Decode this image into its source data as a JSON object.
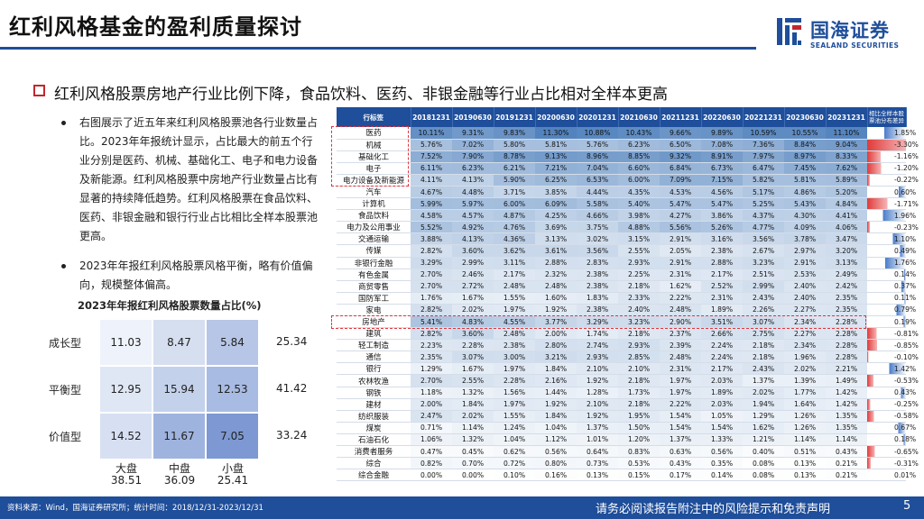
{
  "title": "红利风格基金的盈利质量探讨",
  "brand": {
    "cn": "国海证券",
    "en": "SEALAND SECURITIES",
    "color": "#1f4e9a"
  },
  "headline": "红利风格股票房地产行业比例下降，食品饮料、医药、非银金融等行业占比相对全样本更高",
  "bullets": [
    "右图展示了近五年来红利风格股票池各行业数量占比。2023年年报统计显示，占比最大的前五个行业分别是医药、机械、基础化工、电子和电力设备及新能源。红利风格股票中房地产行业数量占比有显著的持续降低趋势。红利风格股票在食品饮料、医药、非银金融和银行行业占比相比全样本股票池更高。",
    "2023年年报红利风格股票风格平衡，略有价值偏向，规模整体偏高。"
  ],
  "matrix": {
    "title": "2023年年报红利风格股票数量占比(%)",
    "rows": [
      {
        "label": "成长型",
        "values": [
          "11.03",
          "8.47",
          "5.84"
        ],
        "total": "25.34"
      },
      {
        "label": "平衡型",
        "values": [
          "12.95",
          "15.94",
          "12.53"
        ],
        "total": "41.42"
      },
      {
        "label": "价值型",
        "values": [
          "14.52",
          "11.67",
          "7.05"
        ],
        "total": "33.24"
      }
    ],
    "cols": [
      {
        "label": "大盘",
        "total": "38.51"
      },
      {
        "label": "中盘",
        "total": "36.09"
      },
      {
        "label": "小盘",
        "total": "25.41"
      }
    ]
  },
  "table": {
    "headers": [
      "行标签",
      "20181231",
      "20190630",
      "20191231",
      "20200630",
      "20201231",
      "20210630",
      "20211231",
      "20220630",
      "20221231",
      "20230630",
      "20231231",
      "相比全样本股票池分布差异"
    ],
    "rows": [
      [
        "医药",
        "10.11%",
        "9.31%",
        "9.83%",
        "11.30%",
        "10.88%",
        "10.43%",
        "9.66%",
        "9.89%",
        "10.59%",
        "10.55%",
        "11.10%",
        "1.85%"
      ],
      [
        "机械",
        "5.76%",
        "7.02%",
        "5.80%",
        "5.81%",
        "5.76%",
        "6.23%",
        "6.50%",
        "7.08%",
        "7.36%",
        "8.84%",
        "9.04%",
        "-3.30%"
      ],
      [
        "基础化工",
        "7.52%",
        "7.90%",
        "8.78%",
        "9.13%",
        "8.96%",
        "8.85%",
        "9.32%",
        "8.91%",
        "7.97%",
        "8.97%",
        "8.33%",
        "-1.16%"
      ],
      [
        "电子",
        "6.11%",
        "6.23%",
        "6.21%",
        "7.21%",
        "7.04%",
        "6.60%",
        "6.84%",
        "6.73%",
        "6.47%",
        "7.45%",
        "7.62%",
        "-1.20%"
      ],
      [
        "电力设备及新能源",
        "4.11%",
        "4.13%",
        "5.90%",
        "6.25%",
        "6.53%",
        "6.00%",
        "7.09%",
        "7.15%",
        "5.82%",
        "5.81%",
        "5.89%",
        "-0.22%"
      ],
      [
        "汽车",
        "4.67%",
        "4.48%",
        "3.71%",
        "3.85%",
        "4.44%",
        "4.35%",
        "4.53%",
        "4.56%",
        "5.17%",
        "4.86%",
        "5.20%",
        "0.60%"
      ],
      [
        "计算机",
        "5.99%",
        "5.97%",
        "6.00%",
        "6.09%",
        "5.58%",
        "5.40%",
        "5.47%",
        "5.47%",
        "5.25%",
        "5.43%",
        "4.84%",
        "-1.71%"
      ],
      [
        "食品饮料",
        "4.58%",
        "4.57%",
        "4.87%",
        "4.25%",
        "4.66%",
        "3.98%",
        "4.27%",
        "3.86%",
        "4.37%",
        "4.30%",
        "4.41%",
        "1.96%"
      ],
      [
        "电力及公用事业",
        "5.52%",
        "4.92%",
        "4.76%",
        "3.69%",
        "3.75%",
        "4.88%",
        "5.56%",
        "5.26%",
        "4.77%",
        "4.09%",
        "4.06%",
        "-0.23%"
      ],
      [
        "交通运输",
        "3.88%",
        "4.13%",
        "4.36%",
        "3.13%",
        "3.02%",
        "3.15%",
        "2.91%",
        "3.16%",
        "3.56%",
        "3.78%",
        "3.47%",
        "1.10%"
      ],
      [
        "传媒",
        "2.82%",
        "3.60%",
        "3.62%",
        "3.61%",
        "3.56%",
        "2.55%",
        "2.05%",
        "2.38%",
        "2.67%",
        "2.97%",
        "3.20%",
        "0.49%"
      ],
      [
        "非银行金融",
        "3.29%",
        "2.99%",
        "3.11%",
        "2.88%",
        "2.83%",
        "2.93%",
        "2.91%",
        "2.88%",
        "3.23%",
        "2.91%",
        "3.13%",
        "1.76%"
      ],
      [
        "有色金属",
        "2.70%",
        "2.46%",
        "2.17%",
        "2.32%",
        "2.38%",
        "2.25%",
        "2.31%",
        "2.17%",
        "2.51%",
        "2.53%",
        "2.49%",
        "0.14%"
      ],
      [
        "商贸零售",
        "2.70%",
        "2.72%",
        "2.48%",
        "2.48%",
        "2.38%",
        "2.18%",
        "1.62%",
        "2.52%",
        "2.99%",
        "2.40%",
        "2.42%",
        "0.37%"
      ],
      [
        "国防军工",
        "1.76%",
        "1.67%",
        "1.55%",
        "1.60%",
        "1.83%",
        "2.33%",
        "2.22%",
        "2.31%",
        "2.43%",
        "2.40%",
        "2.35%",
        "0.11%"
      ],
      [
        "家电",
        "2.82%",
        "2.02%",
        "1.97%",
        "1.92%",
        "2.38%",
        "2.40%",
        "2.48%",
        "1.89%",
        "2.26%",
        "2.27%",
        "2.35%",
        "0.79%"
      ],
      [
        "房地产",
        "5.41%",
        "4.83%",
        "4.55%",
        "3.77%",
        "3.29%",
        "3.23%",
        "2.90%",
        "3.51%",
        "3.07%",
        "2.34%",
        "2.28%",
        "0.19%"
      ],
      [
        "建筑",
        "2.82%",
        "3.60%",
        "2.48%",
        "2.00%",
        "1.74%",
        "2.18%",
        "2.37%",
        "2.66%",
        "2.75%",
        "2.27%",
        "2.28%",
        "-0.81%"
      ],
      [
        "轻工制造",
        "2.23%",
        "2.28%",
        "2.38%",
        "2.80%",
        "2.74%",
        "2.93%",
        "2.39%",
        "2.24%",
        "2.18%",
        "2.34%",
        "2.28%",
        "-0.85%"
      ],
      [
        "通信",
        "2.35%",
        "3.07%",
        "3.00%",
        "3.21%",
        "2.93%",
        "2.85%",
        "2.48%",
        "2.24%",
        "2.18%",
        "1.96%",
        "2.28%",
        "-0.10%"
      ],
      [
        "银行",
        "1.29%",
        "1.67%",
        "1.97%",
        "1.84%",
        "2.10%",
        "2.10%",
        "2.31%",
        "2.17%",
        "2.43%",
        "2.02%",
        "2.21%",
        "1.42%"
      ],
      [
        "农林牧渔",
        "2.70%",
        "2.55%",
        "2.28%",
        "2.16%",
        "1.92%",
        "2.18%",
        "1.97%",
        "2.03%",
        "1.37%",
        "1.39%",
        "1.49%",
        "-0.53%"
      ],
      [
        "钢铁",
        "1.18%",
        "1.32%",
        "1.56%",
        "1.44%",
        "1.28%",
        "1.73%",
        "1.97%",
        "1.89%",
        "2.02%",
        "1.77%",
        "1.42%",
        "0.43%"
      ],
      [
        "建材",
        "2.00%",
        "1.84%",
        "1.97%",
        "1.92%",
        "2.10%",
        "2.18%",
        "2.22%",
        "2.03%",
        "1.94%",
        "1.64%",
        "1.42%",
        "-0.25%"
      ],
      [
        "纺织服装",
        "2.47%",
        "2.02%",
        "1.55%",
        "1.84%",
        "1.92%",
        "1.95%",
        "1.54%",
        "1.05%",
        "1.29%",
        "1.26%",
        "1.35%",
        "-0.58%"
      ],
      [
        "煤炭",
        "0.71%",
        "1.14%",
        "1.24%",
        "1.04%",
        "1.37%",
        "1.50%",
        "1.54%",
        "1.54%",
        "1.62%",
        "1.26%",
        "1.35%",
        "0.67%"
      ],
      [
        "石油石化",
        "1.06%",
        "1.32%",
        "1.04%",
        "1.12%",
        "1.01%",
        "1.20%",
        "1.37%",
        "1.33%",
        "1.21%",
        "1.14%",
        "1.14%",
        "0.18%"
      ],
      [
        "消费者服务",
        "0.47%",
        "0.45%",
        "0.62%",
        "0.56%",
        "0.64%",
        "0.83%",
        "0.63%",
        "0.56%",
        "0.40%",
        "0.51%",
        "0.43%",
        "-0.65%"
      ],
      [
        "综合",
        "0.82%",
        "0.70%",
        "0.72%",
        "0.80%",
        "0.73%",
        "0.53%",
        "0.43%",
        "0.35%",
        "0.08%",
        "0.13%",
        "0.21%",
        "-0.31%"
      ],
      [
        "综合金融",
        "0.00%",
        "0.00%",
        "0.10%",
        "0.16%",
        "0.13%",
        "0.15%",
        "0.17%",
        "0.14%",
        "0.08%",
        "0.13%",
        "0.21%",
        "0.01%"
      ]
    ]
  },
  "footer": {
    "source": "资料来源：Wind，国海证券研究所；统计时间：2018/12/31-2023/12/31",
    "disclaimer": "请务必阅读报告附注中的风险提示和免责声明",
    "page": "5"
  },
  "colors": {
    "header_blue": "#1f4e9a",
    "highlight_red": "#e1353a",
    "bar_blue": "#4a7cc9",
    "bar_red": "#e03a3a"
  }
}
